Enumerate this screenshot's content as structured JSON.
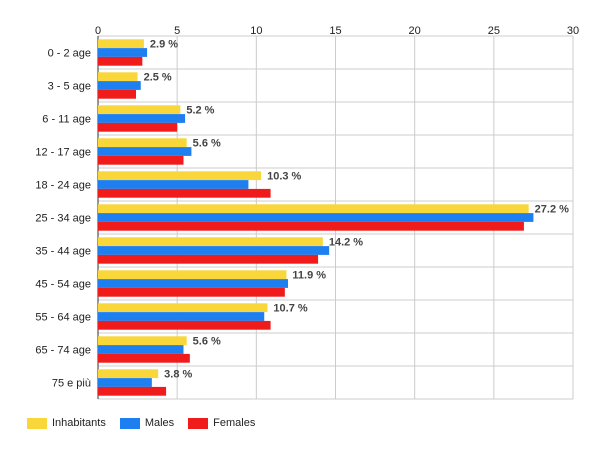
{
  "chart_data": {
    "type": "bar",
    "orientation": "horizontal",
    "categories": [
      "0 - 2 age",
      "3 - 5 age",
      "6 - 11 age",
      "12 - 17 age",
      "18 - 24 age",
      "25 - 34 age",
      "35 - 44 age",
      "45 - 54 age",
      "55 - 64 age",
      "65 - 74 age",
      "75 e più"
    ],
    "series": [
      {
        "name": "Inhabitants",
        "color": "#f9d63a",
        "values": [
          2.9,
          2.5,
          5.2,
          5.6,
          10.3,
          27.2,
          14.2,
          11.9,
          10.7,
          5.6,
          3.8
        ]
      },
      {
        "name": "Males",
        "color": "#1e7ff0",
        "values": [
          3.1,
          2.7,
          5.5,
          5.9,
          9.5,
          27.5,
          14.6,
          12.0,
          10.5,
          5.4,
          3.4
        ]
      },
      {
        "name": "Females",
        "color": "#f01c1c",
        "values": [
          2.8,
          2.4,
          5.0,
          5.4,
          10.9,
          26.9,
          13.9,
          11.8,
          10.9,
          5.8,
          4.3
        ]
      }
    ],
    "data_labels": [
      "2.9 %",
      "2.5 %",
      "5.2 %",
      "5.6 %",
      "10.3 %",
      "27.2 %",
      "14.2 %",
      "11.9 %",
      "10.7 %",
      "5.6 %",
      "3.8 %"
    ],
    "xlim": [
      0,
      30
    ],
    "x_ticks": [
      "0",
      "5",
      "10",
      "15",
      "20",
      "25",
      "30"
    ],
    "grid": true,
    "legend_position": "bottom-left"
  }
}
